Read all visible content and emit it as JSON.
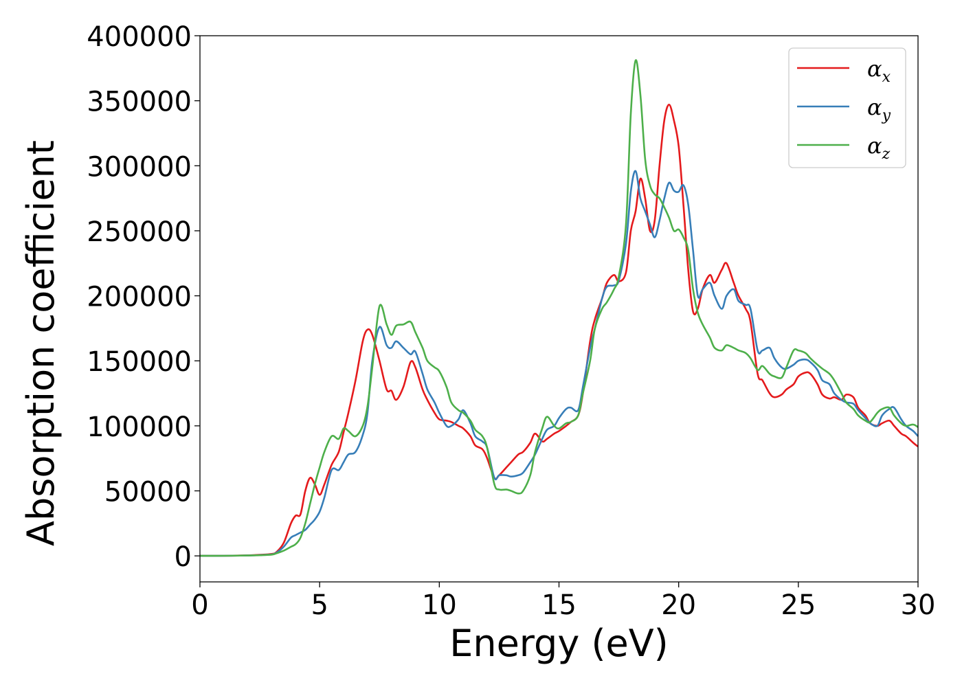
{
  "chart_data": {
    "type": "line",
    "title": "",
    "xlabel": "Energy (eV)",
    "ylabel": "Absorption coefficient",
    "xlim": [
      0,
      30
    ],
    "ylim": [
      -20000,
      400000
    ],
    "xticks": [
      0,
      5,
      10,
      15,
      20,
      25,
      30
    ],
    "yticks": [
      0,
      50000,
      100000,
      150000,
      200000,
      250000,
      300000,
      350000,
      400000
    ],
    "grid": false,
    "legend_position": "top-right",
    "x": [
      0,
      1,
      2,
      2.5,
      3,
      3.2,
      3.5,
      3.8,
      4,
      4.2,
      4.4,
      4.6,
      4.8,
      5,
      5.2,
      5.5,
      5.8,
      6,
      6.2,
      6.5,
      6.8,
      7,
      7.2,
      7.5,
      7.8,
      8,
      8.2,
      8.5,
      8.8,
      9,
      9.3,
      9.5,
      9.8,
      10,
      10.3,
      10.5,
      10.8,
      11,
      11.3,
      11.5,
      11.8,
      12,
      12.3,
      12.5,
      12.8,
      13,
      13.3,
      13.5,
      13.8,
      14,
      14.3,
      14.5,
      14.8,
      15,
      15.3,
      15.5,
      15.8,
      16,
      16.3,
      16.5,
      16.8,
      17,
      17.3,
      17.5,
      17.8,
      18,
      18.2,
      18.4,
      18.6,
      18.8,
      19,
      19.2,
      19.4,
      19.6,
      19.8,
      20,
      20.2,
      20.4,
      20.6,
      20.8,
      21,
      21.3,
      21.5,
      21.8,
      22,
      22.3,
      22.5,
      22.8,
      23,
      23.3,
      23.5,
      23.8,
      24,
      24.3,
      24.5,
      24.8,
      25,
      25.3,
      25.5,
      25.8,
      26,
      26.3,
      26.5,
      26.8,
      27,
      27.3,
      27.5,
      27.8,
      28,
      28.3,
      28.5,
      28.8,
      29,
      29.3,
      29.5,
      29.8,
      30
    ],
    "series": [
      {
        "name": "α_x",
        "color": "#e41a1c",
        "values": [
          0,
          100,
          400,
          800,
          1500,
          3000,
          10000,
          25000,
          31000,
          32000,
          50000,
          60000,
          55000,
          47000,
          55000,
          70000,
          80000,
          95000,
          110000,
          135000,
          165000,
          174000,
          170000,
          150000,
          128000,
          127000,
          120000,
          130000,
          149000,
          145000,
          128000,
          120000,
          110000,
          105000,
          104000,
          103000,
          100000,
          98000,
          92000,
          85000,
          82000,
          75000,
          60000,
          62000,
          68000,
          72000,
          78000,
          80000,
          87000,
          94000,
          88000,
          90000,
          94000,
          96000,
          100000,
          103000,
          108000,
          125000,
          165000,
          182000,
          198000,
          210000,
          216000,
          211000,
          218000,
          250000,
          265000,
          290000,
          275000,
          250000,
          258000,
          300000,
          335000,
          347000,
          335000,
          315000,
          270000,
          220000,
          188000,
          190000,
          205000,
          216000,
          210000,
          220000,
          225000,
          210000,
          200000,
          190000,
          180000,
          140000,
          135000,
          125000,
          122000,
          124000,
          128000,
          132000,
          138000,
          141000,
          140000,
          132000,
          124000,
          121000,
          122000,
          120000,
          124000,
          122000,
          114000,
          108000,
          102000,
          100000,
          102000,
          104000,
          100000,
          94000,
          92000,
          87000,
          84000
        ]
      },
      {
        "name": "α_y",
        "color": "#377eb8",
        "values": [
          0,
          100,
          300,
          600,
          1200,
          2500,
          7000,
          14000,
          16000,
          18000,
          20000,
          24000,
          28000,
          34000,
          45000,
          66000,
          66000,
          72000,
          78000,
          80000,
          93000,
          110000,
          150000,
          176000,
          162000,
          160000,
          165000,
          160000,
          155000,
          157000,
          140000,
          128000,
          118000,
          110000,
          100000,
          100000,
          105000,
          112000,
          102000,
          92000,
          88000,
          83000,
          60000,
          62000,
          62000,
          61000,
          62000,
          64000,
          72000,
          78000,
          90000,
          97000,
          100000,
          106000,
          113000,
          114000,
          112000,
          130000,
          160000,
          175000,
          198000,
          207000,
          208000,
          212000,
          240000,
          280000,
          296000,
          275000,
          265000,
          255000,
          245000,
          258000,
          275000,
          287000,
          281000,
          280000,
          285000,
          270000,
          235000,
          200000,
          205000,
          210000,
          200000,
          190000,
          200000,
          205000,
          196000,
          193000,
          190000,
          158000,
          158000,
          160000,
          152000,
          145000,
          144000,
          147000,
          150000,
          151000,
          149000,
          143000,
          135000,
          132000,
          125000,
          120000,
          118000,
          117000,
          112000,
          106000,
          102000,
          100000,
          108000,
          113000,
          114000,
          105000,
          100000,
          96000,
          92000
        ]
      },
      {
        "name": "α_z",
        "color": "#4daf4a",
        "values": [
          0,
          100,
          300,
          500,
          1000,
          2000,
          4000,
          7000,
          9000,
          14000,
          25000,
          40000,
          55000,
          68000,
          80000,
          92000,
          90000,
          98000,
          96000,
          92000,
          100000,
          115000,
          145000,
          192000,
          178000,
          170000,
          177000,
          178000,
          180000,
          172000,
          160000,
          150000,
          145000,
          142000,
          130000,
          118000,
          112000,
          110000,
          104000,
          97000,
          92000,
          83000,
          55000,
          51000,
          51000,
          50000,
          48000,
          50000,
          62000,
          80000,
          98000,
          107000,
          100000,
          98000,
          102000,
          103000,
          108000,
          125000,
          150000,
          175000,
          190000,
          195000,
          205000,
          215000,
          255000,
          340000,
          381000,
          355000,
          305000,
          285000,
          278000,
          275000,
          268000,
          260000,
          250000,
          251000,
          245000,
          235000,
          205000,
          187000,
          178000,
          168000,
          160000,
          158000,
          162000,
          160000,
          158000,
          156000,
          152000,
          143000,
          146000,
          140000,
          138000,
          137000,
          145000,
          158000,
          158000,
          156000,
          152000,
          147000,
          144000,
          140000,
          135000,
          125000,
          118000,
          113000,
          108000,
          104000,
          103000,
          110000,
          113000,
          114000,
          108000,
          102000,
          100000,
          101000,
          99000
        ]
      }
    ]
  }
}
